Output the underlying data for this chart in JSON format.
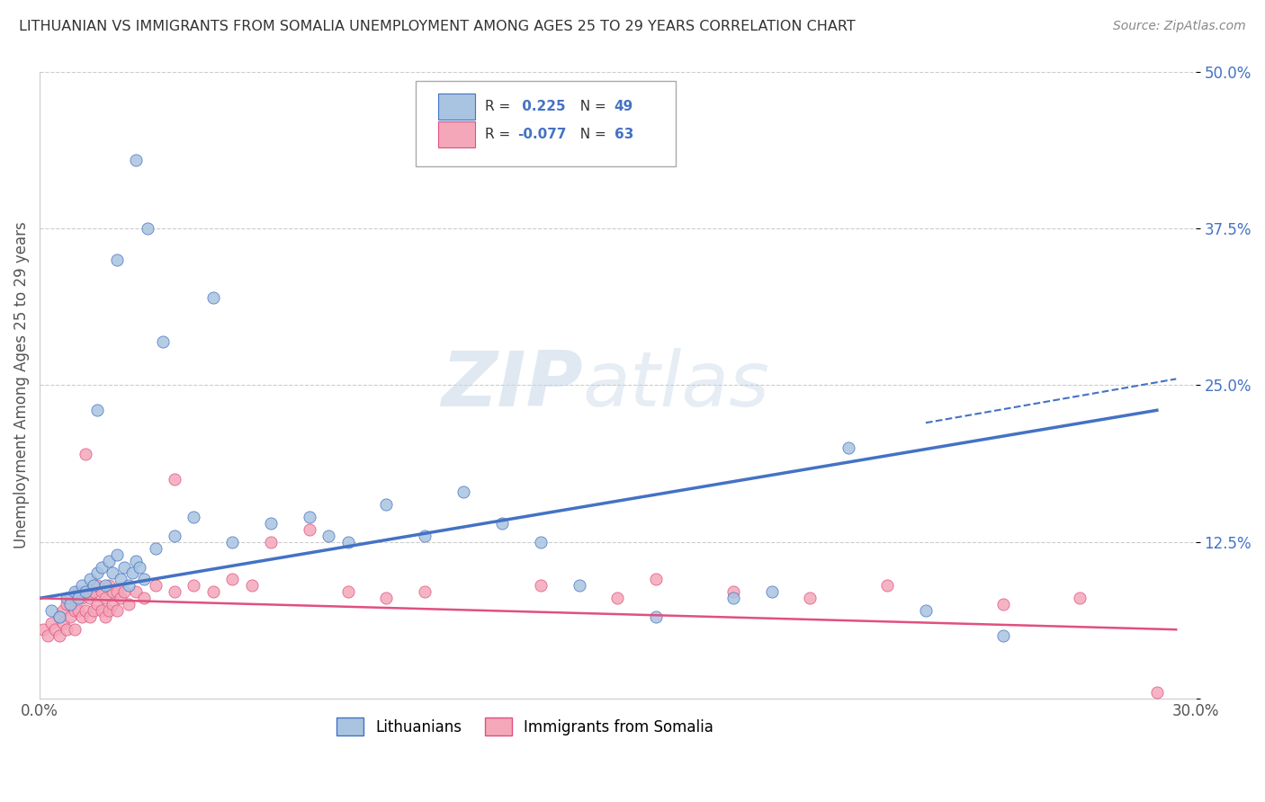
{
  "title": "LITHUANIAN VS IMMIGRANTS FROM SOMALIA UNEMPLOYMENT AMONG AGES 25 TO 29 YEARS CORRELATION CHART",
  "source": "Source: ZipAtlas.com",
  "ylabel": "Unemployment Among Ages 25 to 29 years",
  "ytick_values": [
    0.0,
    12.5,
    25.0,
    37.5,
    50.0
  ],
  "xmin": 0.0,
  "xmax": 30.0,
  "ymin": 0.0,
  "ymax": 50.0,
  "legend_labels": [
    "Lithuanians",
    "Immigrants from Somalia"
  ],
  "blue_color": "#a8c4e0",
  "pink_color": "#f4a7b9",
  "blue_line_color": "#4472c4",
  "pink_line_color": "#e05080",
  "watermark_zip": "ZIP",
  "watermark_atlas": "atlas",
  "R_blue": "0.225",
  "N_blue": 49,
  "R_pink": "-0.077",
  "N_pink": 63,
  "blue_scatter_x": [
    2.5,
    2.0,
    2.8,
    4.5,
    3.2,
    1.5,
    0.3,
    0.5,
    0.7,
    0.8,
    0.9,
    1.0,
    1.1,
    1.2,
    1.3,
    1.4,
    1.5,
    1.6,
    1.7,
    1.8,
    1.9,
    2.0,
    2.1,
    2.2,
    2.3,
    2.4,
    2.5,
    2.6,
    2.7,
    3.0,
    3.5,
    4.0,
    5.0,
    6.0,
    7.0,
    7.5,
    8.0,
    9.0,
    10.0,
    11.0,
    12.0,
    13.0,
    14.0,
    16.0,
    18.0,
    19.0,
    21.0,
    23.0,
    25.0
  ],
  "blue_scatter_y": [
    43.0,
    35.0,
    37.5,
    32.0,
    28.5,
    23.0,
    7.0,
    6.5,
    8.0,
    7.5,
    8.5,
    8.0,
    9.0,
    8.5,
    9.5,
    9.0,
    10.0,
    10.5,
    9.0,
    11.0,
    10.0,
    11.5,
    9.5,
    10.5,
    9.0,
    10.0,
    11.0,
    10.5,
    9.5,
    12.0,
    13.0,
    14.5,
    12.5,
    14.0,
    14.5,
    13.0,
    12.5,
    15.5,
    13.0,
    16.5,
    14.0,
    12.5,
    9.0,
    6.5,
    8.0,
    8.5,
    20.0,
    7.0,
    5.0
  ],
  "pink_scatter_x": [
    0.1,
    0.2,
    0.3,
    0.4,
    0.5,
    0.5,
    0.6,
    0.6,
    0.7,
    0.7,
    0.8,
    0.8,
    0.9,
    0.9,
    1.0,
    1.0,
    1.1,
    1.1,
    1.2,
    1.2,
    1.3,
    1.3,
    1.4,
    1.4,
    1.5,
    1.5,
    1.6,
    1.6,
    1.7,
    1.7,
    1.8,
    1.8,
    1.9,
    1.9,
    2.0,
    2.0,
    2.1,
    2.2,
    2.3,
    2.5,
    2.7,
    3.0,
    3.5,
    4.0,
    4.5,
    5.0,
    5.5,
    6.0,
    7.0,
    8.0,
    9.0,
    10.0,
    13.0,
    15.0,
    16.0,
    18.0,
    20.0,
    22.0,
    25.0,
    27.0,
    29.0,
    3.5,
    1.2
  ],
  "pink_scatter_y": [
    5.5,
    5.0,
    6.0,
    5.5,
    6.5,
    5.0,
    6.0,
    7.0,
    7.5,
    5.5,
    8.0,
    6.5,
    7.0,
    5.5,
    8.5,
    7.0,
    8.0,
    6.5,
    8.5,
    7.0,
    8.0,
    6.5,
    8.5,
    7.0,
    9.0,
    7.5,
    8.5,
    7.0,
    8.0,
    6.5,
    9.0,
    7.0,
    8.5,
    7.5,
    8.5,
    7.0,
    8.0,
    8.5,
    7.5,
    8.5,
    8.0,
    9.0,
    8.5,
    9.0,
    8.5,
    9.5,
    9.0,
    12.5,
    13.5,
    8.5,
    8.0,
    8.5,
    9.0,
    8.0,
    9.5,
    8.5,
    8.0,
    9.0,
    7.5,
    8.0,
    0.5,
    17.5,
    19.5
  ],
  "blue_line_x": [
    0.0,
    29.0
  ],
  "blue_line_y_start": 8.0,
  "blue_line_y_end": 23.0,
  "pink_line_x": [
    0.0,
    29.5
  ],
  "pink_line_y_start": 8.0,
  "pink_line_y_end": 5.5
}
